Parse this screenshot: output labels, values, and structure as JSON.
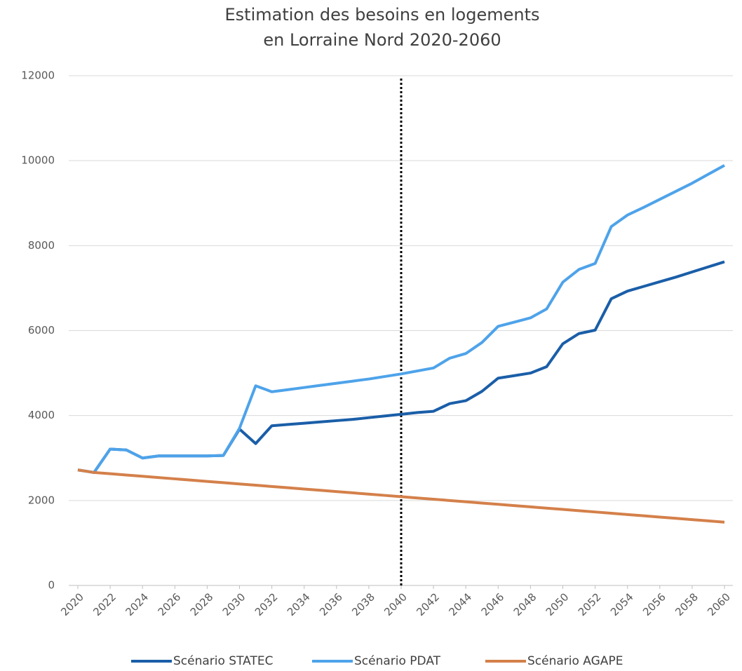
{
  "chart_data": {
    "type": "line",
    "title": [
      "Estimation des besoins en logements",
      "en Lorraine Nord 2020-2060"
    ],
    "x": [
      2020,
      2021,
      2022,
      2023,
      2024,
      2025,
      2026,
      2027,
      2028,
      2029,
      2030,
      2031,
      2032,
      2033,
      2034,
      2035,
      2036,
      2037,
      2038,
      2039,
      2040,
      2041,
      2042,
      2043,
      2044,
      2045,
      2046,
      2047,
      2048,
      2049,
      2050,
      2051,
      2052,
      2053,
      2054,
      2055,
      2056,
      2057,
      2058,
      2059,
      2060
    ],
    "series": [
      {
        "name": "Scénario STATEC",
        "color": "#1a5ea8",
        "values": [
          2720,
          2660,
          3210,
          3190,
          3000,
          3050,
          3050,
          3050,
          3050,
          3060,
          3680,
          3340,
          3760,
          3790,
          3820,
          3850,
          3880,
          3910,
          3950,
          3990,
          4030,
          4070,
          4100,
          4280,
          4350,
          4570,
          4880,
          4940,
          5000,
          5150,
          5690,
          5930,
          6010,
          6750,
          6930,
          7040,
          7150,
          7260,
          7380,
          7500,
          7620
        ]
      },
      {
        "name": "Scénario PDAT",
        "color": "#4ea3ea",
        "values": [
          2720,
          2660,
          3210,
          3190,
          3000,
          3050,
          3050,
          3050,
          3050,
          3060,
          3700,
          4700,
          4560,
          4610,
          4660,
          4710,
          4760,
          4810,
          4860,
          4920,
          4980,
          5050,
          5120,
          5350,
          5460,
          5720,
          6100,
          6200,
          6300,
          6510,
          7140,
          7440,
          7580,
          8450,
          8720,
          8900,
          9090,
          9280,
          9470,
          9680,
          9890
        ]
      },
      {
        "name": "Scénario AGAPE",
        "color": "#d4804a",
        "values": [
          2720,
          2660,
          2630,
          2600,
          2570,
          2540,
          2510,
          2480,
          2450,
          2420,
          2390,
          2360,
          2330,
          2300,
          2270,
          2240,
          2210,
          2180,
          2150,
          2120,
          2090,
          2060,
          2030,
          2000,
          1970,
          1940,
          1910,
          1880,
          1850,
          1820,
          1790,
          1760,
          1730,
          1700,
          1670,
          1640,
          1610,
          1580,
          1550,
          1520,
          1490
        ]
      }
    ],
    "xlim": [
      2020,
      2060
    ],
    "xticks": [
      2020,
      2022,
      2024,
      2026,
      2028,
      2030,
      2032,
      2034,
      2036,
      2038,
      2040,
      2042,
      2044,
      2046,
      2048,
      2050,
      2052,
      2054,
      2056,
      2058,
      2060
    ],
    "ylim": [
      0,
      12000
    ],
    "yticks": [
      0,
      2000,
      4000,
      6000,
      8000,
      10000,
      12000
    ],
    "grid": true,
    "vertical_line": 2040,
    "legend": "bottom"
  }
}
